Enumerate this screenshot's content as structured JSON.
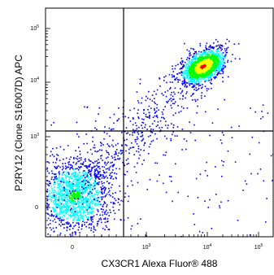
{
  "chart_data": {
    "type": "scatter",
    "subtype": "flow-cytometry-density-dot-plot",
    "xlabel": "CX3CR1 Alexa Fluor® 488",
    "ylabel": "P2RY12 (Clone S16007D) APC",
    "x_scale": "biexponential",
    "y_scale": "biexponential",
    "x_ticks": [
      {
        "label": "0",
        "base": "0",
        "exp": ""
      },
      {
        "label": "10^3",
        "base": "10",
        "exp": "3"
      },
      {
        "label": "10^4",
        "base": "10",
        "exp": "4"
      },
      {
        "label": "10^5",
        "base": "10",
        "exp": "5"
      }
    ],
    "y_ticks": [
      {
        "label": "0",
        "base": "0",
        "exp": ""
      },
      {
        "label": "10^3",
        "base": "10",
        "exp": "3"
      },
      {
        "label": "10^4",
        "base": "10",
        "exp": "4"
      },
      {
        "label": "10^5",
        "base": "10",
        "exp": "5"
      }
    ],
    "quadrant_gate": {
      "x": 400,
      "y": 1100
    },
    "populations": [
      {
        "name": "",
        "x_center": 0,
        "y_center": 0,
        "relative_size": "large",
        "density": "medium"
      },
      {
        "name": "",
        "x_center": 9000,
        "y_center": 20000,
        "relative_size": "large",
        "density": "high"
      }
    ],
    "colormap": [
      "#0000ff",
      "#00ffff",
      "#00ff00",
      "#ffff00",
      "#ff0000"
    ],
    "grid": false,
    "legend": "none"
  }
}
